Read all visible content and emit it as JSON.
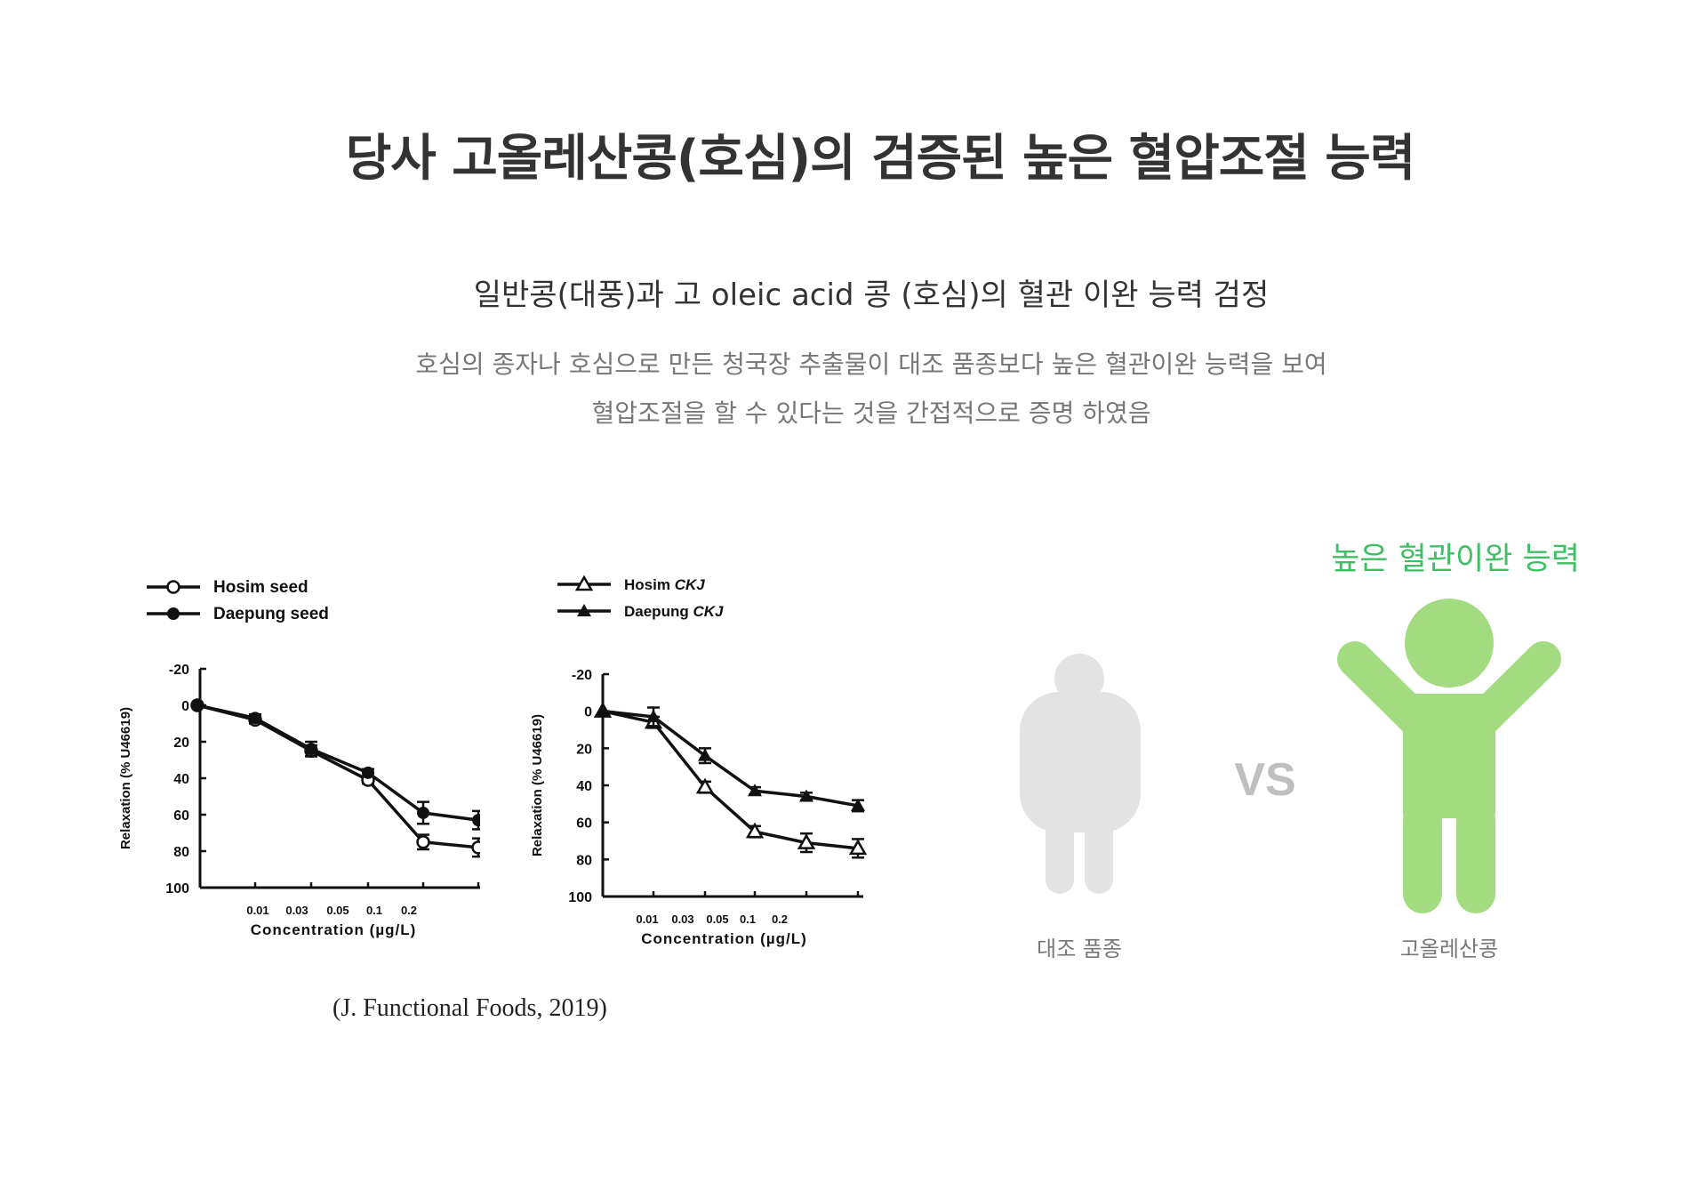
{
  "header": {
    "title": "당사 고올레산콩(호심)의 검증된 높은 혈압조절 능력",
    "subtitle": "일반콩(대풍)과 고 oleic acid 콩 (호심)의 혈관 이완 능력 검정",
    "desc_line1": "호심의 종자나 호심으로 만든 청국장 추출물이 대조 품종보다 높은 혈관이완 능력을 보여",
    "desc_line2": "혈압조절을 할 수 있다는 것을 간접적으로 증명 하였음"
  },
  "citation": "(J. Functional Foods, 2019)",
  "illustration": {
    "headline": "높은 혈관이완 능력",
    "vs": "VS",
    "left_label": "대조 품종",
    "right_label": "고올레산콩",
    "colors": {
      "green": "#a3dc80",
      "green_text": "#3fbf63",
      "gray": "#e3e3e3",
      "vs": "#bfbfbf"
    }
  },
  "chart_data": [
    {
      "type": "line",
      "xlabel": "Concentration (µg/L)",
      "ylabel": "Relaxation (% U46619)",
      "ylim": [
        -20,
        100
      ],
      "y_inverted": true,
      "yticks": [
        -20,
        0,
        20,
        40,
        60,
        80,
        100
      ],
      "x_tick_labels": [
        "0.01",
        "0.03",
        "0.05",
        "0.1",
        "0.2"
      ],
      "series": [
        {
          "name": "Hosim seed",
          "marker": "open-circle",
          "values": [
            0,
            8,
            25,
            41,
            75,
            78
          ],
          "errors": [
            0,
            2,
            3,
            2,
            4,
            5
          ]
        },
        {
          "name": "Daepung seed",
          "marker": "filled-circle",
          "values": [
            0,
            7,
            24,
            37,
            59,
            63
          ],
          "errors": [
            0,
            2,
            4,
            2,
            6,
            5
          ]
        }
      ],
      "legend_position": "top-left"
    },
    {
      "type": "line",
      "xlabel": "Concentration (µg/L)",
      "ylabel": "Relaxation (% U46619)",
      "ylim": [
        -20,
        100
      ],
      "y_inverted": true,
      "yticks": [
        -20,
        0,
        20,
        40,
        60,
        80,
        100
      ],
      "x_tick_labels": [
        "0.01",
        "0.03",
        "0.05",
        "0.1",
        "0.2"
      ],
      "series": [
        {
          "name": "Hosim",
          "name_suffix": "CKJ",
          "marker": "open-triangle",
          "values": [
            0,
            6,
            41,
            65,
            71,
            74
          ],
          "errors": [
            0,
            3,
            3,
            3,
            5,
            5
          ]
        },
        {
          "name": "Daepung",
          "name_suffix": "CKJ",
          "marker": "filled-triangle",
          "values": [
            0,
            3,
            24,
            43,
            46,
            51
          ],
          "errors": [
            0,
            5,
            4,
            2,
            2,
            3
          ]
        }
      ],
      "legend_position": "top-left"
    }
  ]
}
